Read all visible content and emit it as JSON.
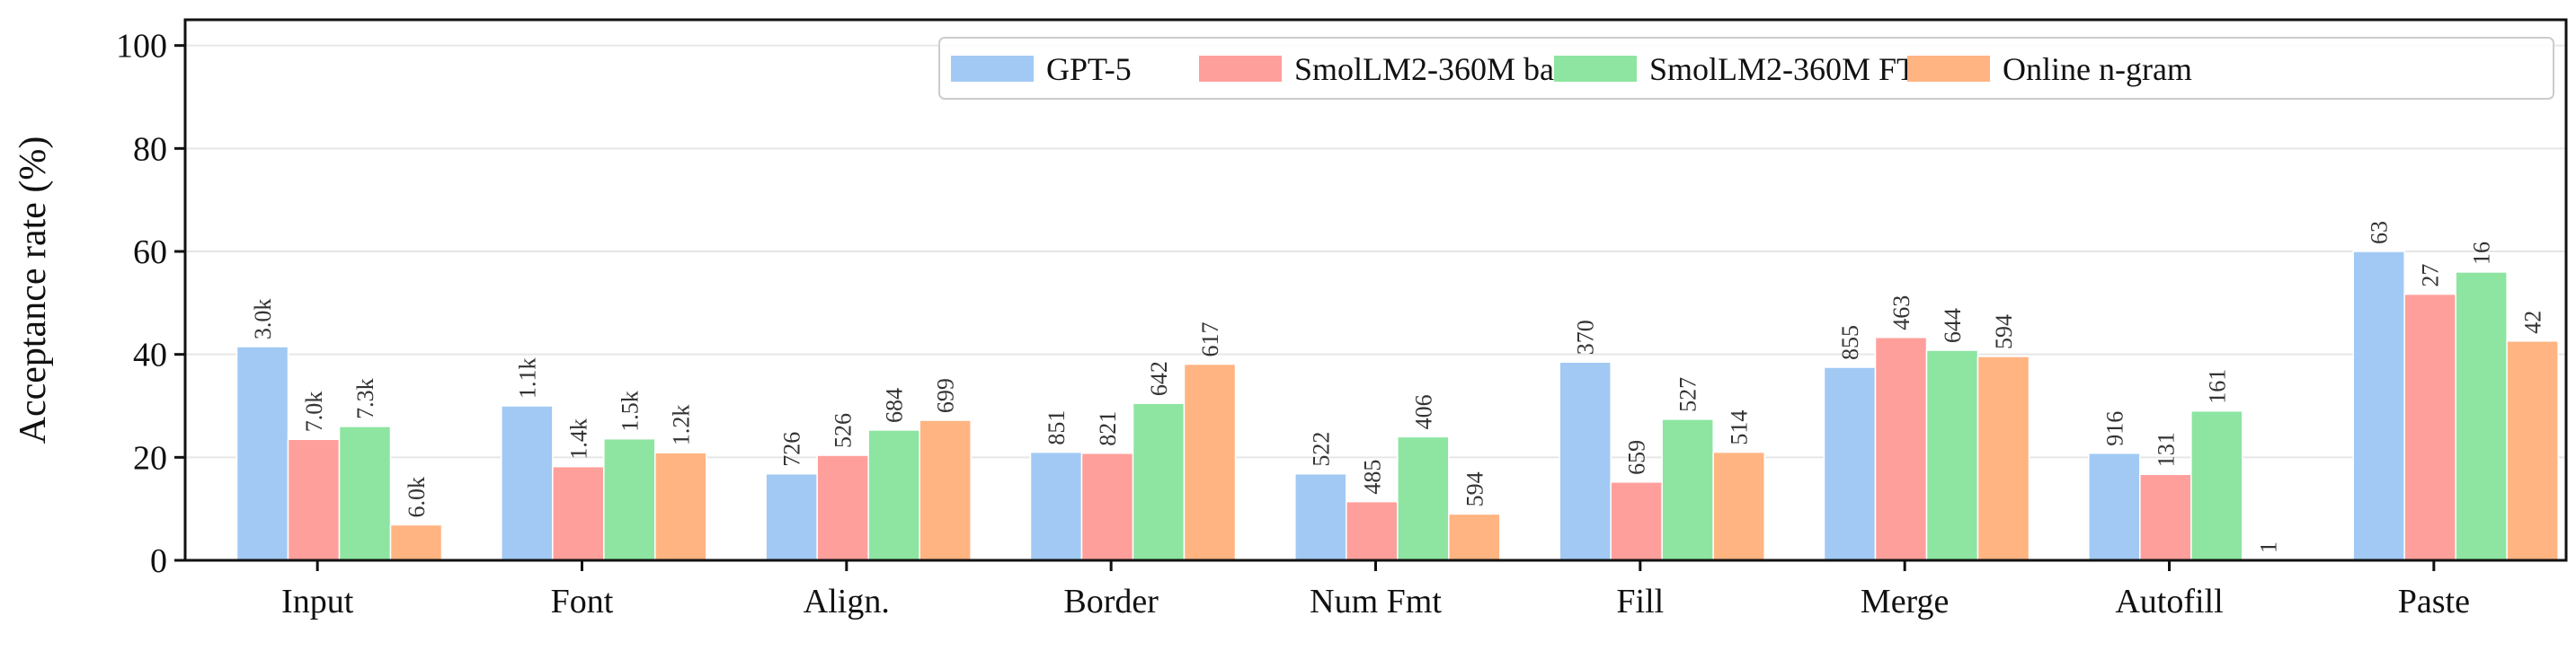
{
  "chart_data": {
    "type": "bar",
    "categories": [
      "Input",
      "Font",
      "Align.",
      "Border",
      "Num Fmt",
      "Fill",
      "Merge",
      "Autofill",
      "Paste"
    ],
    "series": [
      {
        "name": "GPT-5",
        "color": "#a1c9f4",
        "values": [
          41.5,
          30.0,
          16.8,
          21.0,
          16.8,
          38.5,
          37.5,
          20.8,
          60.0
        ],
        "labels": [
          "3.0k",
          "1.1k",
          "726",
          "851",
          "522",
          "370",
          "855",
          "916",
          "63"
        ]
      },
      {
        "name": "SmolLM2-360M base",
        "color": "#ff9f9b",
        "values": [
          23.5,
          18.2,
          20.4,
          20.8,
          11.4,
          15.2,
          43.3,
          16.7,
          51.7
        ],
        "labels": [
          "7.0k",
          "1.4k",
          "526",
          "821",
          "485",
          "659",
          "463",
          "131",
          "27"
        ]
      },
      {
        "name": "SmolLM2-360M FT",
        "color": "#8de5a1",
        "values": [
          26.0,
          23.6,
          25.3,
          30.5,
          24.0,
          27.4,
          40.8,
          29.0,
          56.0
        ],
        "labels": [
          "7.3k",
          "1.5k",
          "684",
          "642",
          "406",
          "527",
          "644",
          "161",
          "16"
        ]
      },
      {
        "name": "Online n-gram",
        "color": "#ffb482",
        "values": [
          6.9,
          20.9,
          27.2,
          38.1,
          9.0,
          21.0,
          39.6,
          0.0,
          42.6
        ],
        "labels": [
          "6.0k",
          "1.2k",
          "699",
          "617",
          "594",
          "514",
          "594",
          "1",
          "42"
        ]
      }
    ],
    "ylabel": "Acceptance rate (%)",
    "xlabel": "",
    "ylim": [
      0,
      105
    ],
    "yticks": [
      0,
      20,
      40,
      60,
      80,
      100
    ],
    "grid": "horizontal",
    "legend_position": "top-right",
    "legend_columns": 4
  }
}
